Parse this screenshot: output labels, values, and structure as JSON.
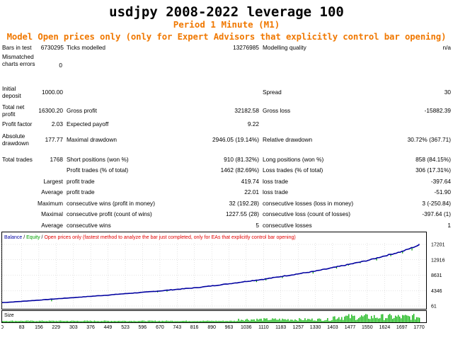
{
  "header": {
    "title": "usdjpy 2008-2022  leverage 100",
    "period": "Period  1 Minute (M1)",
    "model": "Model  Open prices only (only for Expert Advisors that explicitly control bar opening)"
  },
  "report": {
    "bars_in_test_label": "Bars in test",
    "bars_in_test_value": "6730295",
    "ticks_modelled_label": "Ticks modelled",
    "ticks_modelled_value": "13276985",
    "modelling_quality_label": "Modelling quality",
    "modelling_quality_value": "n/a",
    "mismatched_label": "Mismatched charts errors",
    "mismatched_value": "0",
    "initial_deposit_label": "Initial deposit",
    "initial_deposit_value": "1000.00",
    "spread_label": "Spread",
    "spread_value": "30",
    "total_net_profit_label": "Total net profit",
    "total_net_profit_value": "16300.20",
    "gross_profit_label": "Gross profit",
    "gross_profit_value": "32182.58",
    "gross_loss_label": "Gross loss",
    "gross_loss_value": "-15882.39",
    "profit_factor_label": "Profit factor",
    "profit_factor_value": "2.03",
    "expected_payoff_label": "Expected payoff",
    "expected_payoff_value": "9.22",
    "absolute_drawdown_label": "Absolute drawdown",
    "absolute_drawdown_value": "177.77",
    "maximal_drawdown_label": "Maximal drawdown",
    "maximal_drawdown_value": "2946.05 (19.14%)",
    "relative_drawdown_label": "Relative drawdown",
    "relative_drawdown_value": "30.72% (367.71)",
    "total_trades_label": "Total trades",
    "total_trades_value": "1768",
    "short_positions_label": "Short positions (won %)",
    "short_positions_value": "910 (81.32%)",
    "long_positions_label": "Long positions (won %)",
    "long_positions_value": "858 (84.15%)",
    "profit_trades_label": "Profit trades (% of total)",
    "profit_trades_value": "1462 (82.69%)",
    "loss_trades_label": "Loss trades (% of total)",
    "loss_trades_value": "306 (17.31%)",
    "largest_label": "Largest",
    "average_label": "Average",
    "maximum_label": "Maximum",
    "maximal_label": "Maximal",
    "largest_profit_trade_label": "profit trade",
    "largest_profit_trade_value": "419.74",
    "largest_loss_trade_label": "loss trade",
    "largest_loss_trade_value": "-397.64",
    "average_profit_trade_label": "profit trade",
    "average_profit_trade_value": "22.01",
    "average_loss_trade_label": "loss trade",
    "average_loss_trade_value": "-51.90",
    "max_consec_wins_label": "consecutive wins (profit in money)",
    "max_consec_wins_value": "32 (192.28)",
    "max_consec_losses_label": "consecutive losses (loss in money)",
    "max_consec_losses_value": "3 (-250.84)",
    "maximal_consec_profit_label": "consecutive profit (count of wins)",
    "maximal_consec_profit_value": "1227.55 (28)",
    "maximal_consec_loss_label": "consecutive loss (count of losses)",
    "maximal_consec_loss_value": "-397.64 (1)",
    "avg_consec_wins_label": "consecutive wins",
    "avg_consec_wins_value": "5",
    "avg_consec_losses_label": "consecutive losses",
    "avg_consec_losses_value": "1"
  },
  "chart_legend": {
    "balance": "Balance",
    "sep1": " / ",
    "equity": "Equity",
    "sep2": " / ",
    "note": "Open prices only (fastest method to analyze the bar just completed, only for EAs that explicitly control bar opening)"
  },
  "chart_data": {
    "type": "line",
    "series": [
      {
        "name": "Balance",
        "x": [
          0,
          83,
          156,
          229,
          303,
          376,
          449,
          523,
          596,
          670,
          743,
          816,
          890,
          963,
          1036,
          1110,
          1183,
          1257,
          1330,
          1403,
          1477,
          1550,
          1624,
          1697,
          1770,
          1768
        ],
        "values": [
          1000,
          1350,
          1700,
          2050,
          2400,
          2750,
          3100,
          3500,
          3850,
          4250,
          4700,
          5100,
          5650,
          6250,
          6900,
          7500,
          8250,
          9000,
          9750,
          10700,
          11700,
          12700,
          14000,
          15200,
          17000,
          17300
        ]
      },
      {
        "name": "Equity",
        "color": "#00a000"
      }
    ],
    "y_ticks": [
      "17201",
      "12916",
      "8631",
      "4346",
      "61"
    ],
    "ylim": [
      61,
      17201
    ],
    "x_ticks": [
      "0",
      "83",
      "156",
      "229",
      "303",
      "376",
      "449",
      "523",
      "596",
      "670",
      "743",
      "816",
      "890",
      "963",
      "1036",
      "1110",
      "1183",
      "1257",
      "1330",
      "1403",
      "1477",
      "1550",
      "1624",
      "1697",
      "1770"
    ],
    "xlim": [
      0,
      1800
    ],
    "size_label": "Size",
    "balance_color": "#0000a0",
    "equity_color": "#00a000",
    "grid": true
  }
}
